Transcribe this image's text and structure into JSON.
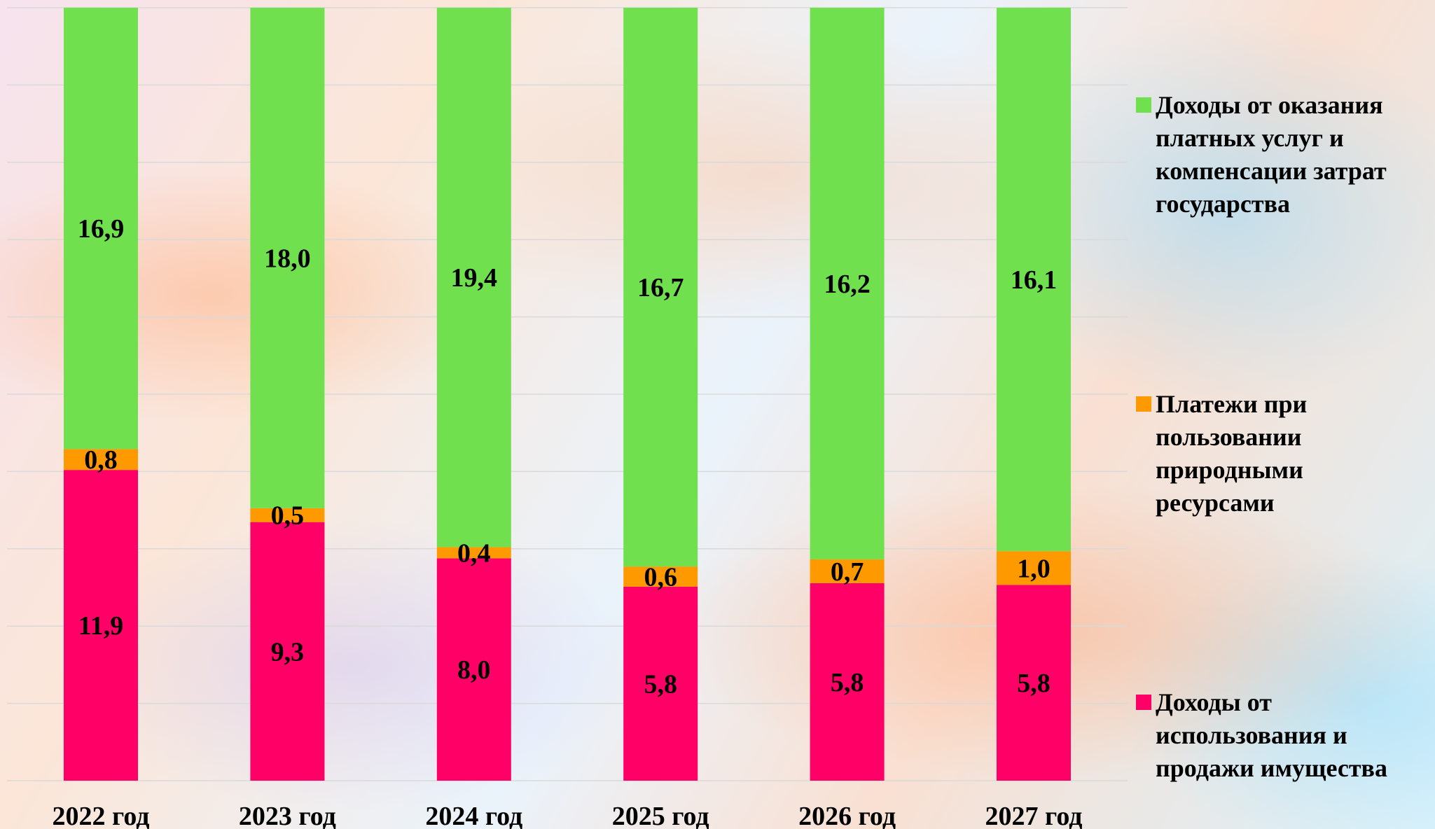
{
  "chart_data": {
    "type": "bar",
    "stacked": true,
    "categories": [
      "2022 год",
      "2023 год",
      "2024 год",
      "2025 год",
      "2026 год",
      "2027 год"
    ],
    "series": [
      {
        "name": "Доходы от использования и продажи имущества",
        "color": "#ff0066",
        "values": [
          11.9,
          9.3,
          8.0,
          5.8,
          5.8,
          5.8
        ],
        "labels": [
          "11,9",
          "9,3",
          "8,0",
          "5,8",
          "5,8",
          "5,8"
        ]
      },
      {
        "name": "Платежи при пользовании природными ресурсами",
        "color": "#ff9900",
        "values": [
          0.8,
          0.5,
          0.4,
          0.6,
          0.7,
          1.0
        ],
        "labels": [
          "0,8",
          "0,5",
          "0,4",
          "0,6",
          "0,7",
          "1,0"
        ]
      },
      {
        "name": "Доходы от оказания платных услуг и компенсации затрат государства",
        "color": "#70e04f",
        "values": [
          16.9,
          18.0,
          19.4,
          16.7,
          16.2,
          16.1
        ],
        "labels": [
          "16,9",
          "18,0",
          "19,4",
          "16,7",
          "16,2",
          "16,1"
        ]
      }
    ],
    "normalized": "percent-stacked",
    "grid": true,
    "legend_position": "right"
  },
  "legend": {
    "items": [
      {
        "label": "Доходы от оказания\nплатных услуг и\nкомпенсации затрат\nгосударства",
        "color": "#70e04f"
      },
      {
        "label": "Платежи при\nпользовании\nприродными\nресурсами",
        "color": "#ff9900"
      },
      {
        "label": "Доходы от\nиспользования и\nпродажи имущества",
        "color": "#ff0066"
      }
    ]
  }
}
